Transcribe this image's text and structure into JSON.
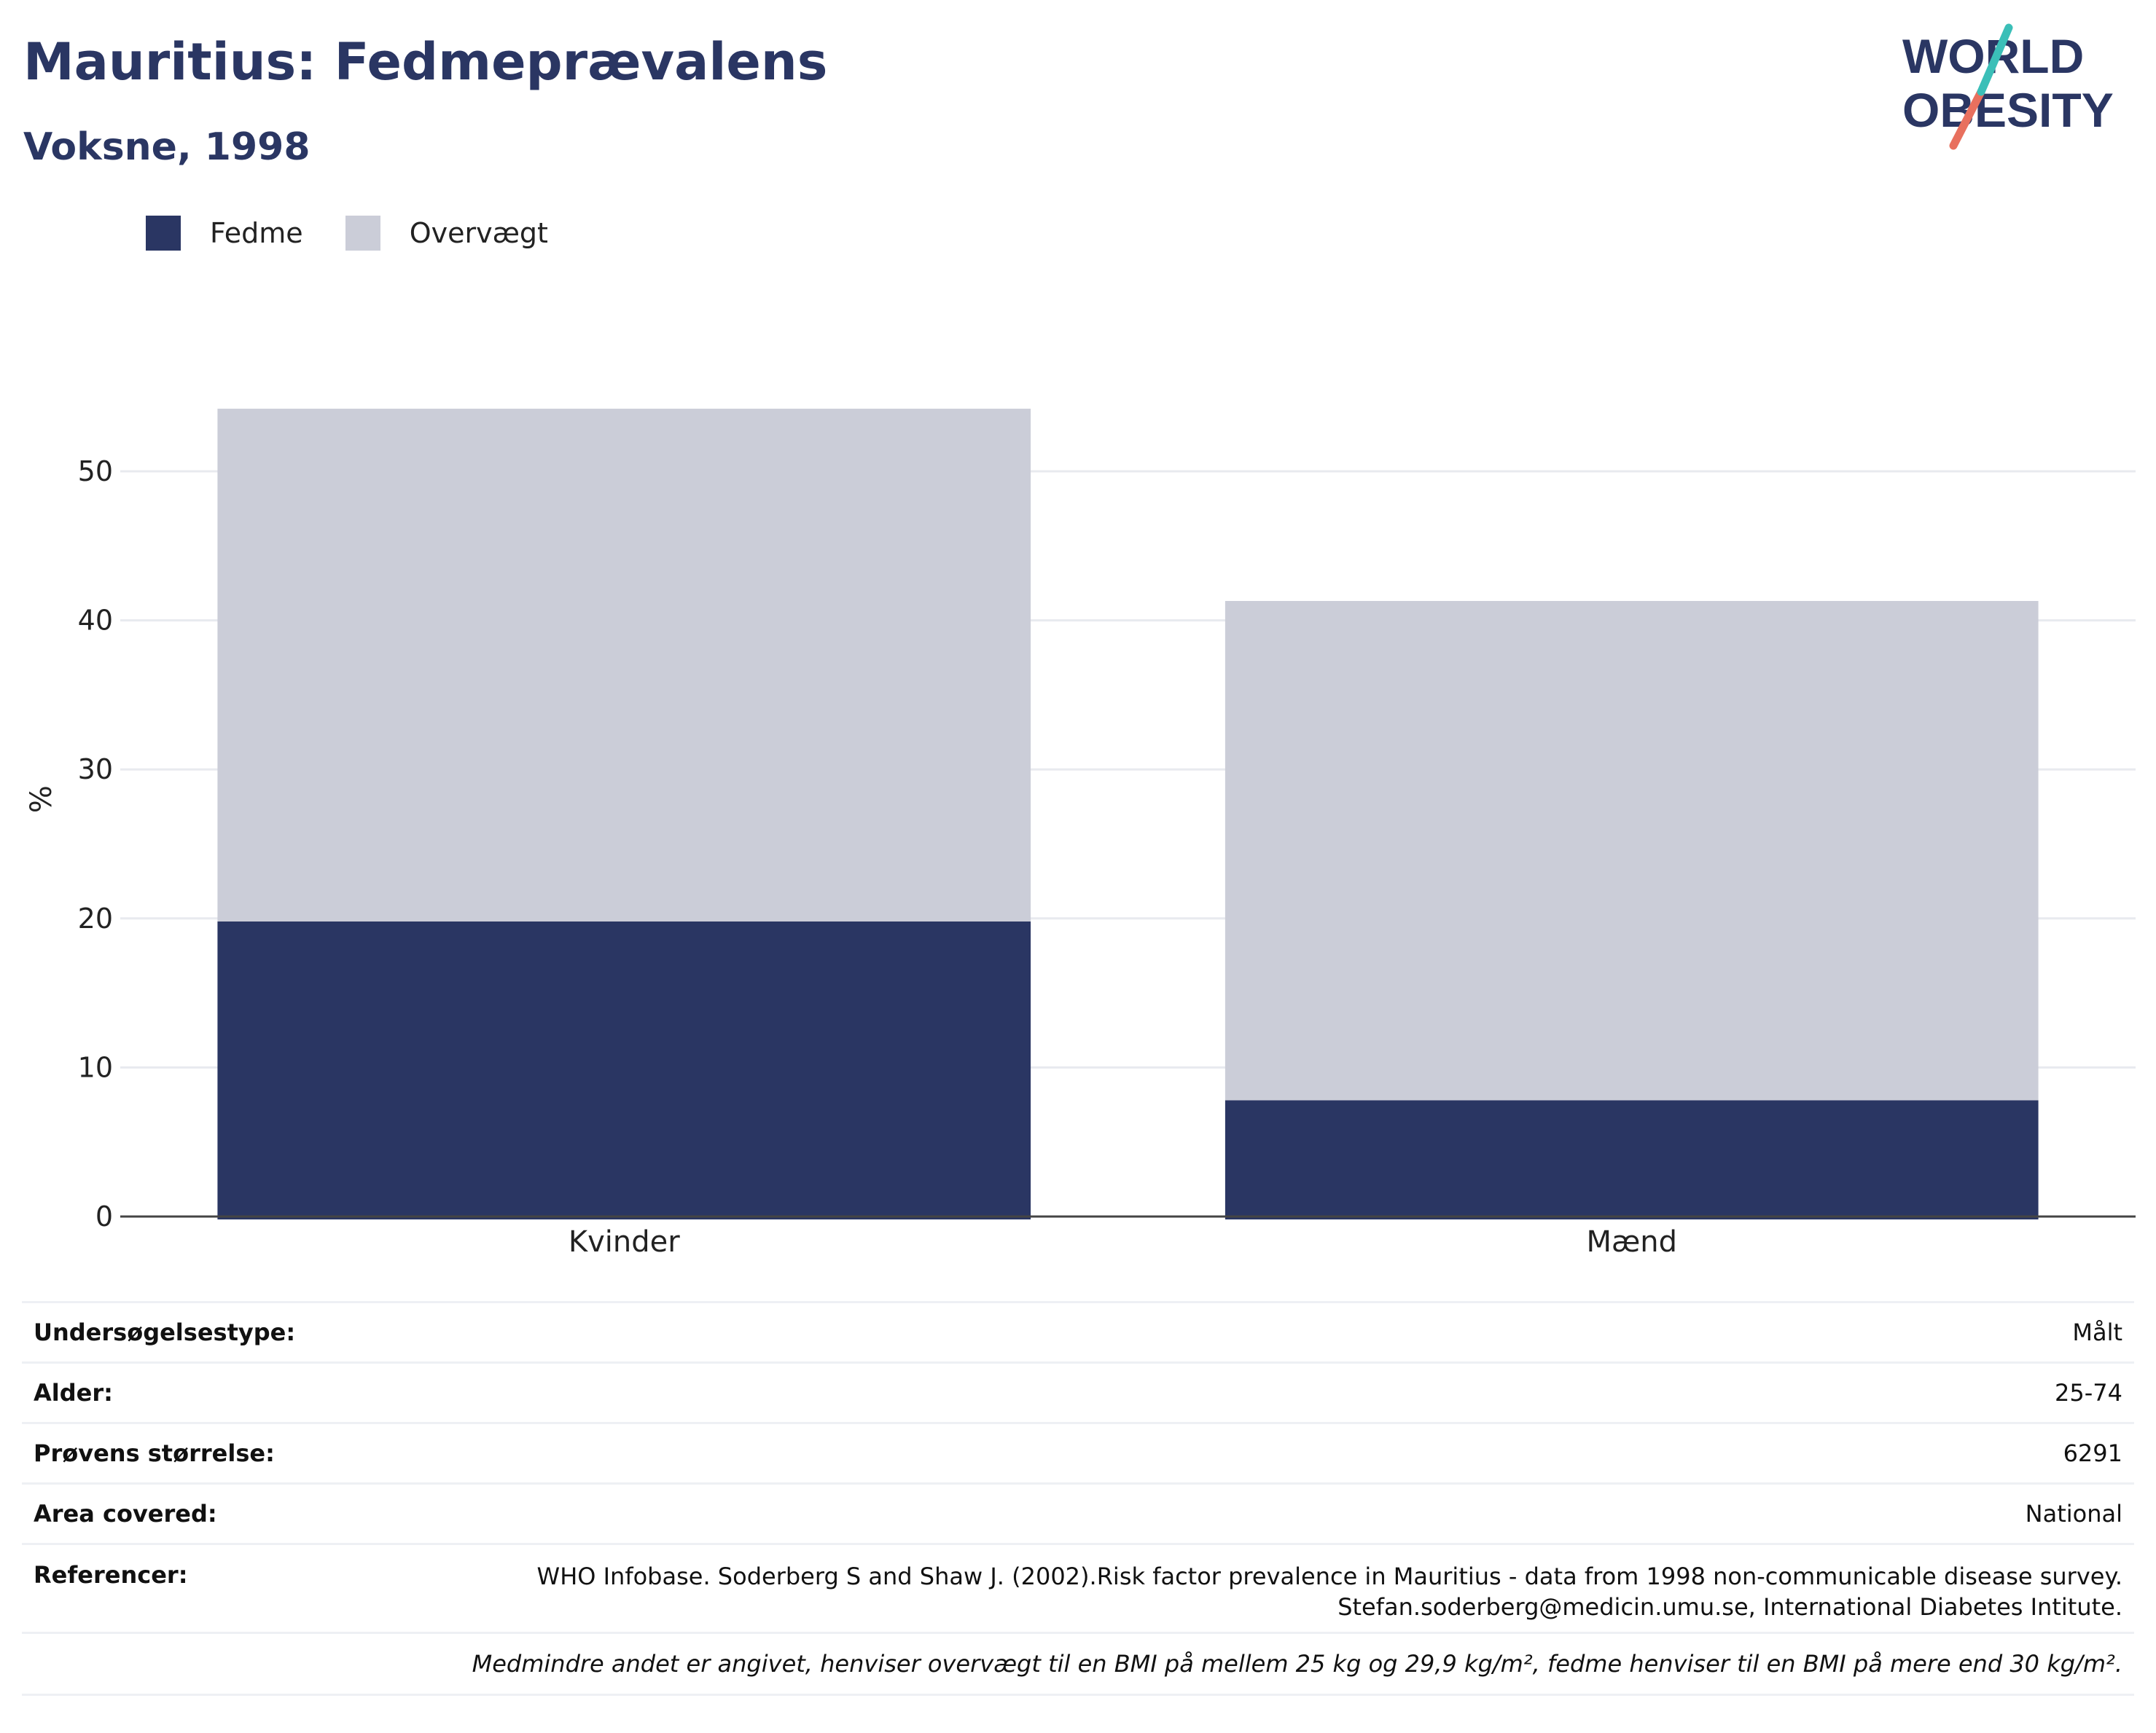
{
  "header": {
    "title": "Mauritius: Fedmeprævalens",
    "subtitle": "Voksne, 1998"
  },
  "logo": {
    "line1": "WORLD",
    "line2": "OBESITY"
  },
  "colors": {
    "fedme": "#2a3663",
    "overvaegt": "#cbcdd8",
    "accent_teal": "#3bbfb8",
    "accent_red": "#e8705e"
  },
  "legend": [
    {
      "label": "Fedme",
      "color": "#2a3663"
    },
    {
      "label": "Overvægt",
      "color": "#cbcdd8"
    }
  ],
  "chart_data": {
    "type": "bar",
    "stacked": true,
    "categories": [
      "Kvinder",
      "Mænd"
    ],
    "series": [
      {
        "name": "Fedme",
        "values": [
          19.8,
          7.8
        ]
      },
      {
        "name": "Overvægt",
        "values": [
          34.4,
          33.5
        ]
      }
    ],
    "ylabel": "%",
    "yticks": [
      0,
      10,
      20,
      30,
      40,
      50
    ],
    "ylim": [
      0,
      56
    ],
    "grid": true,
    "legend_position": "top-left"
  },
  "info": {
    "survey_type": {
      "label": "Undersøgelsestype:",
      "value": "Målt"
    },
    "age": {
      "label": "Alder:",
      "value": "25-74"
    },
    "sample_size": {
      "label": "Prøvens størrelse:",
      "value": "6291"
    },
    "area": {
      "label": "Area covered:",
      "value": "National"
    },
    "references": {
      "label": "Referencer:",
      "line1": "WHO Infobase. Soderberg S and Shaw J. (2002).Risk factor prevalence in Mauritius - data from 1998 non-communicable disease survey.",
      "line2": "Stefan.soderberg@medicin.umu.se, International Diabetes Intitute."
    },
    "note": "Medmindre andet er angivet, henviser overvægt til en BMI på mellem 25 kg og 29,9 kg/m², fedme henviser til en BMI på mere end 30 kg/m²."
  }
}
